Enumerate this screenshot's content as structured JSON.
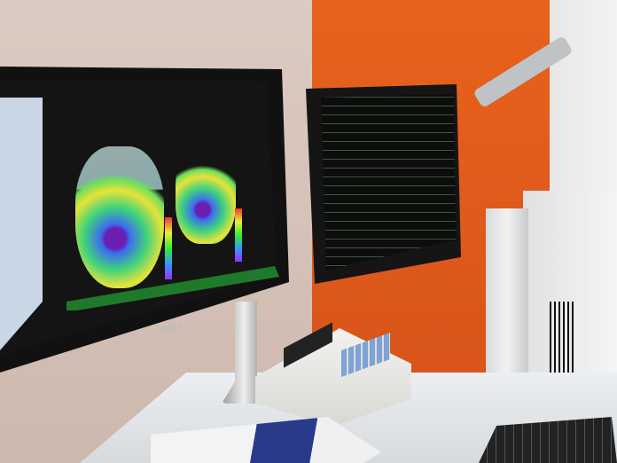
{
  "scene": {
    "logo_text": "DELL",
    "colors": {
      "orange_wall": "#e8621d",
      "left_wall": "#d8c8bf",
      "screen_ui_blue": "#2f6fb8"
    }
  }
}
